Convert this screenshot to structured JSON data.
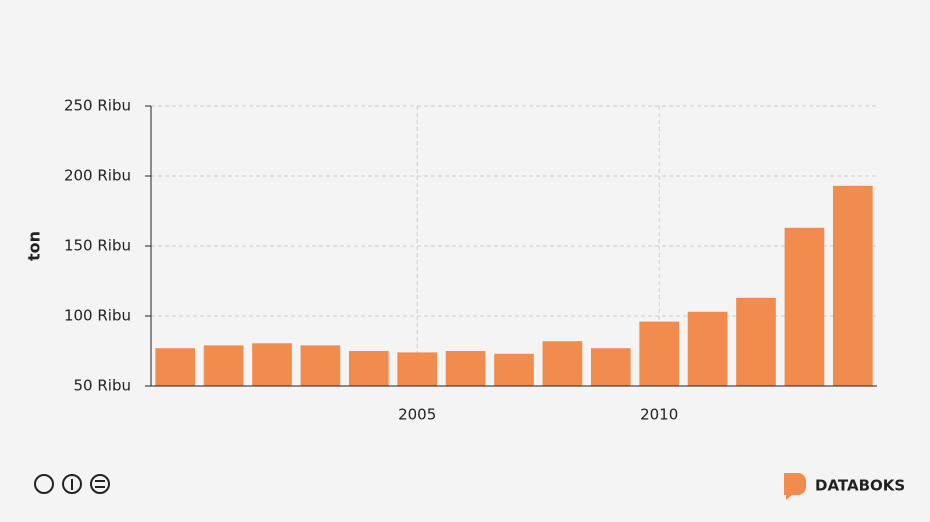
{
  "chart_data": {
    "type": "bar",
    "y_label": "ton",
    "x": [
      2000,
      2001,
      2002,
      2003,
      2004,
      2005,
      2006,
      2007,
      2008,
      2009,
      2010,
      2011,
      2012,
      2013,
      2014
    ],
    "values": [
      77000,
      79000,
      80500,
      79000,
      75000,
      74000,
      75000,
      73000,
      82000,
      77000,
      96000,
      103000,
      113000,
      163000,
      193000
    ],
    "color": "#f28b4e",
    "xlim": [
      1999.5,
      2014.5
    ],
    "xticks": [
      2005,
      2010
    ],
    "ylim": [
      50000,
      250000
    ],
    "yticks": [
      {
        "value": 50000,
        "label": "50 Ribu"
      },
      {
        "value": 100000,
        "label": "100 Ribu"
      },
      {
        "value": 150000,
        "label": "150 Ribu"
      },
      {
        "value": 200000,
        "label": "200 Ribu"
      },
      {
        "value": 250000,
        "label": "250 Ribu"
      }
    ],
    "grid": true
  },
  "brand": "DATABOKS"
}
